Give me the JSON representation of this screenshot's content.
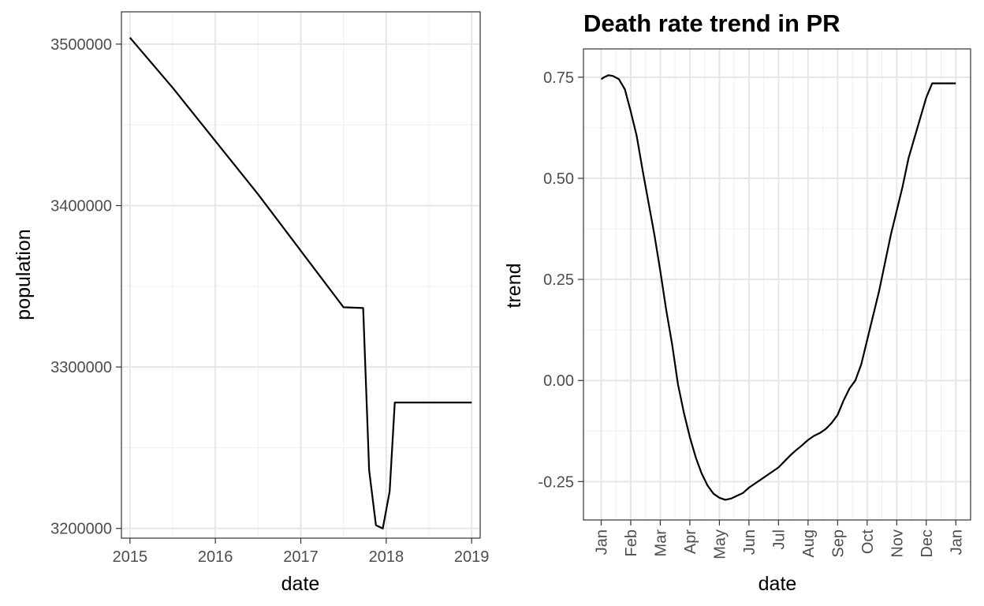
{
  "chart_data": [
    {
      "type": "line",
      "title": "",
      "xlabel": "date",
      "ylabel": "population",
      "x_ticks": [
        "2015",
        "2016",
        "2017",
        "2018",
        "2019"
      ],
      "y_ticks": [
        "3200000",
        "3300000",
        "3400000",
        "3500000"
      ],
      "xlim": [
        2014.9,
        2019.1
      ],
      "ylim": [
        3194000,
        3520000
      ],
      "grid": true,
      "series": [
        {
          "x": [
            2015.0,
            2015.5,
            2016.5,
            2017.5,
            2017.73,
            2017.8,
            2017.88,
            2017.96,
            2018.04,
            2018.1,
            2018.5,
            2019.0
          ],
          "y": [
            3504000,
            3473000,
            3407000,
            3337000,
            3336500,
            3236000,
            3202000,
            3200000,
            3223000,
            3278000,
            3278000,
            3278000
          ]
        }
      ]
    },
    {
      "type": "line",
      "title": "Death rate trend in PR",
      "xlabel": "date",
      "ylabel": "trend",
      "x_ticks": [
        "Jan",
        "Feb",
        "Mar",
        "Apr",
        "May",
        "Jun",
        "Jul",
        "Aug",
        "Sep",
        "Oct",
        "Nov",
        "Dec",
        "Jan"
      ],
      "y_ticks": [
        "-0.25",
        "0.00",
        "0.25",
        "0.50",
        "0.75"
      ],
      "xlim": [
        -0.6,
        12.5
      ],
      "ylim": [
        -0.345,
        0.82
      ],
      "grid": true,
      "series": [
        {
          "x": [
            0.0,
            0.1,
            0.25,
            0.4,
            0.6,
            0.8,
            1.0,
            1.2,
            1.4,
            1.6,
            1.8,
            2.0,
            2.2,
            2.4,
            2.6,
            2.8,
            3.0,
            3.2,
            3.4,
            3.6,
            3.8,
            4.0,
            4.2,
            4.4,
            4.6,
            4.8,
            5.0,
            5.2,
            5.4,
            5.6,
            5.8,
            6.0,
            6.2,
            6.4,
            6.6,
            6.8,
            7.0,
            7.2,
            7.4,
            7.6,
            7.8,
            8.0,
            8.2,
            8.4,
            8.6,
            8.8,
            9.0,
            9.2,
            9.4,
            9.6,
            9.8,
            10.0,
            10.2,
            10.4,
            10.6,
            10.8,
            11.0,
            11.2,
            11.4,
            11.6,
            11.8,
            12.0
          ],
          "y": [
            0.745,
            0.75,
            0.755,
            0.753,
            0.745,
            0.72,
            0.665,
            0.605,
            0.52,
            0.44,
            0.36,
            0.27,
            0.175,
            0.09,
            -0.01,
            -0.08,
            -0.14,
            -0.19,
            -0.23,
            -0.26,
            -0.28,
            -0.29,
            -0.295,
            -0.292,
            -0.285,
            -0.278,
            -0.265,
            -0.255,
            -0.245,
            -0.235,
            -0.225,
            -0.215,
            -0.2,
            -0.185,
            -0.172,
            -0.16,
            -0.147,
            -0.137,
            -0.13,
            -0.12,
            -0.105,
            -0.085,
            -0.05,
            -0.02,
            0.0,
            0.04,
            0.1,
            0.16,
            0.22,
            0.29,
            0.36,
            0.42,
            0.48,
            0.55,
            0.6,
            0.65,
            0.7,
            0.735,
            0.735,
            0.735,
            0.735,
            0.735
          ]
        }
      ]
    }
  ]
}
